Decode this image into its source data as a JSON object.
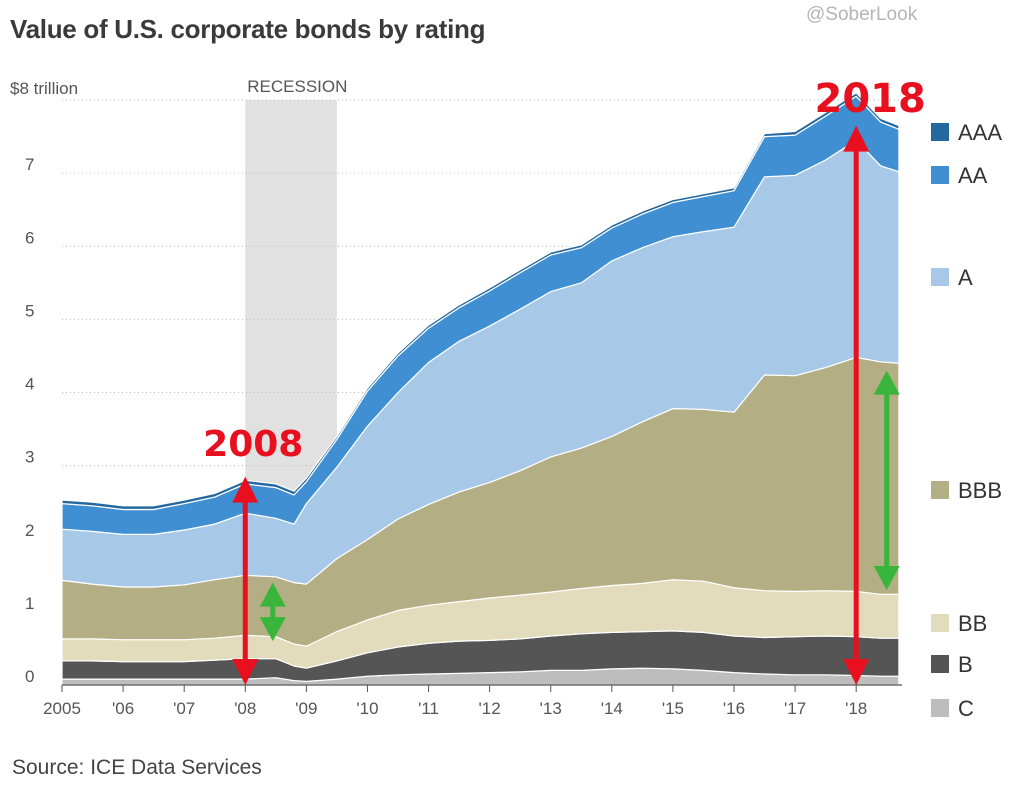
{
  "header": {
    "title": "Value of U.S. corporate bonds by rating",
    "watermark": "@SoberLook"
  },
  "footer": {
    "source": "Source: ICE Data Services"
  },
  "chart_data": {
    "type": "area",
    "stacked": true,
    "title": "Value of U.S. corporate bonds by rating",
    "y_unit_label": "$8 trillion",
    "ylim": [
      0,
      8
    ],
    "xlim": [
      2005,
      2018.75
    ],
    "y_ticks": [
      0,
      1,
      2,
      3,
      4,
      5,
      6,
      7
    ],
    "x_ticks": [
      {
        "value": 2005,
        "label": "2005"
      },
      {
        "value": 2006,
        "label": "'06"
      },
      {
        "value": 2007,
        "label": "'07"
      },
      {
        "value": 2008,
        "label": "'08"
      },
      {
        "value": 2009,
        "label": "'09"
      },
      {
        "value": 2010,
        "label": "'10"
      },
      {
        "value": 2011,
        "label": "'11"
      },
      {
        "value": 2012,
        "label": "'12"
      },
      {
        "value": 2013,
        "label": "'13"
      },
      {
        "value": 2014,
        "label": "'14"
      },
      {
        "value": 2015,
        "label": "'15"
      },
      {
        "value": 2016,
        "label": "'16"
      },
      {
        "value": 2017,
        "label": "'17"
      },
      {
        "value": 2018,
        "label": "'18"
      }
    ],
    "grid": "horizontal-dotted",
    "legend_position": "right",
    "recession": {
      "label": "RECESSION",
      "start": 2008.0,
      "end": 2009.5
    },
    "x": [
      2005.0,
      2005.5,
      2006.0,
      2006.5,
      2007.0,
      2007.5,
      2008.0,
      2008.5,
      2008.8,
      2009.0,
      2009.5,
      2010.0,
      2010.5,
      2011.0,
      2011.5,
      2012.0,
      2012.5,
      2013.0,
      2013.5,
      2014.0,
      2014.5,
      2015.0,
      2015.5,
      2016.0,
      2016.5,
      2017.0,
      2017.5,
      2018.0,
      2018.4,
      2018.7
    ],
    "series": [
      {
        "name": "C",
        "color": "#bdbdbd",
        "values": [
          0.08,
          0.08,
          0.08,
          0.08,
          0.08,
          0.08,
          0.08,
          0.1,
          0.06,
          0.05,
          0.08,
          0.12,
          0.14,
          0.15,
          0.16,
          0.17,
          0.18,
          0.2,
          0.2,
          0.22,
          0.23,
          0.22,
          0.2,
          0.17,
          0.15,
          0.14,
          0.14,
          0.13,
          0.12,
          0.12
        ]
      },
      {
        "name": "B",
        "color": "#555555",
        "values": [
          0.25,
          0.25,
          0.24,
          0.24,
          0.24,
          0.26,
          0.28,
          0.26,
          0.2,
          0.18,
          0.25,
          0.32,
          0.38,
          0.42,
          0.44,
          0.44,
          0.45,
          0.47,
          0.5,
          0.5,
          0.5,
          0.52,
          0.52,
          0.5,
          0.5,
          0.52,
          0.53,
          0.53,
          0.52,
          0.52
        ]
      },
      {
        "name": "BB",
        "color": "#e2dcbc",
        "values": [
          0.3,
          0.3,
          0.3,
          0.3,
          0.3,
          0.3,
          0.32,
          0.3,
          0.3,
          0.3,
          0.4,
          0.45,
          0.5,
          0.52,
          0.54,
          0.58,
          0.6,
          0.6,
          0.62,
          0.64,
          0.66,
          0.7,
          0.7,
          0.66,
          0.64,
          0.62,
          0.62,
          0.62,
          0.6,
          0.6
        ]
      },
      {
        "name": "BBB",
        "color": "#b3ae84",
        "values": [
          0.8,
          0.75,
          0.72,
          0.72,
          0.75,
          0.8,
          0.82,
          0.82,
          0.84,
          0.85,
          1.0,
          1.1,
          1.25,
          1.38,
          1.5,
          1.58,
          1.7,
          1.85,
          1.92,
          2.04,
          2.21,
          2.34,
          2.35,
          2.4,
          2.95,
          2.95,
          3.05,
          3.2,
          3.18,
          3.16
        ]
      },
      {
        "name": "A",
        "color": "#a7c8e7",
        "values": [
          0.7,
          0.72,
          0.72,
          0.72,
          0.75,
          0.76,
          0.85,
          0.8,
          0.8,
          1.1,
          1.25,
          1.55,
          1.73,
          1.94,
          2.06,
          2.14,
          2.21,
          2.26,
          2.26,
          2.4,
          2.38,
          2.35,
          2.43,
          2.53,
          2.71,
          2.74,
          2.84,
          2.97,
          2.68,
          2.62
        ]
      },
      {
        "name": "AA",
        "color": "#3f8fd2",
        "values": [
          0.35,
          0.35,
          0.34,
          0.34,
          0.36,
          0.37,
          0.4,
          0.42,
          0.4,
          0.3,
          0.38,
          0.48,
          0.5,
          0.47,
          0.46,
          0.48,
          0.5,
          0.5,
          0.48,
          0.45,
          0.46,
          0.47,
          0.48,
          0.5,
          0.55,
          0.55,
          0.6,
          0.6,
          0.6,
          0.58
        ]
      },
      {
        "name": "AAA",
        "color": "#23689e",
        "values": [
          0.05,
          0.05,
          0.05,
          0.05,
          0.05,
          0.05,
          0.05,
          0.05,
          0.05,
          0.05,
          0.04,
          0.04,
          0.04,
          0.04,
          0.04,
          0.04,
          0.04,
          0.04,
          0.04,
          0.04,
          0.04,
          0.04,
          0.04,
          0.04,
          0.04,
          0.05,
          0.05,
          0.05,
          0.05,
          0.05
        ]
      }
    ],
    "annotations": [
      {
        "label": "2008",
        "x": 2008.0,
        "arrow_color": "#e8101f",
        "arrow_from": 0,
        "arrow_to": 2.85
      },
      {
        "label": "2018",
        "x": 2018.0,
        "arrow_color": "#e8101f",
        "arrow_from": 0,
        "arrow_to": 7.65
      },
      {
        "arrow_color": "#38b53a",
        "x": 2008.45,
        "arrow_from": 0.6,
        "arrow_to": 1.4
      },
      {
        "arrow_color": "#38b53a",
        "x": 2018.5,
        "arrow_from": 1.3,
        "arrow_to": 4.3
      }
    ]
  }
}
